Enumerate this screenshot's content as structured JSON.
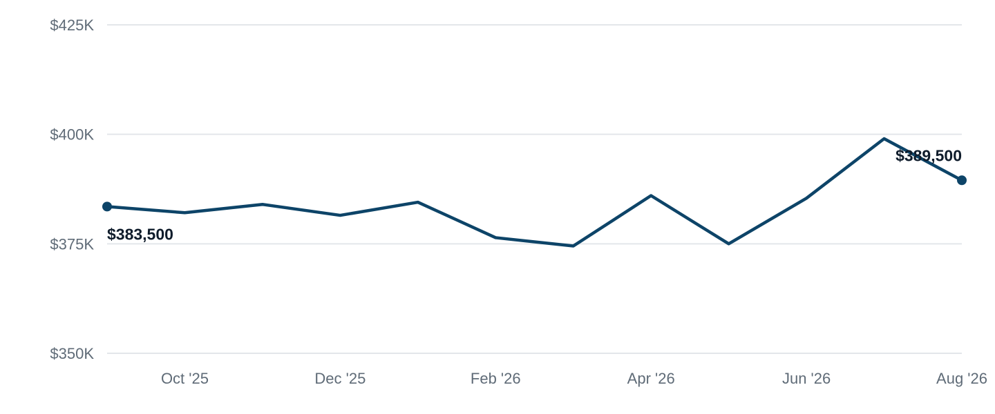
{
  "chart_data": {
    "type": "line",
    "title": "",
    "xlabel": "",
    "ylabel": "",
    "ylim": [
      350000,
      425000
    ],
    "y_ticks": [
      350000,
      375000,
      400000,
      425000
    ],
    "y_tick_labels": [
      "$350K",
      "$375K",
      "$400K",
      "$425K"
    ],
    "x": [
      "2025-09",
      "2025-10",
      "2025-11",
      "2025-12",
      "2026-01",
      "2026-02",
      "2026-03",
      "2026-04",
      "2026-05",
      "2026-06",
      "2026-07",
      "2026-08"
    ],
    "x_tick_positions": [
      "2025-10",
      "2025-12",
      "2026-02",
      "2026-04",
      "2026-06",
      "2026-08"
    ],
    "x_tick_labels": [
      "Oct '25",
      "Dec '25",
      "Feb '26",
      "Apr '26",
      "Jun '26",
      "Aug '26"
    ],
    "series": [
      {
        "values": [
          383500,
          382100,
          384000,
          381500,
          384500,
          376400,
          374500,
          386000,
          375000,
          385400,
          399000,
          389500
        ],
        "color": "#0d4468"
      }
    ],
    "data_labels": [
      {
        "x": "2025-09",
        "text": "$383,500"
      },
      {
        "x": "2026-08",
        "text": "$389,500"
      }
    ],
    "grid": true,
    "legend": "none"
  }
}
